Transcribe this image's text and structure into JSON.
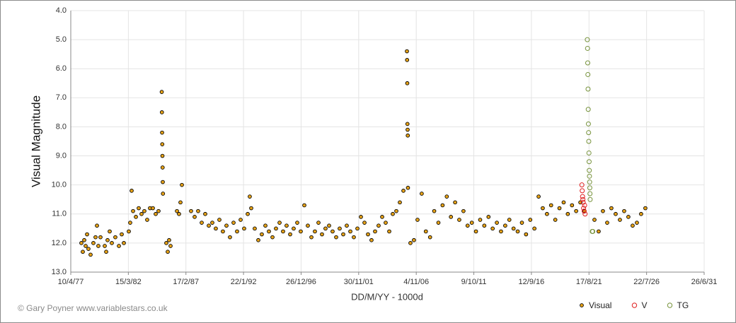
{
  "chart_data": {
    "type": "scatter",
    "x_label": "DD/M/YY - 1000d",
    "y_label": "Visual Magnitude",
    "credit": "© Gary Poyner www.variablestars.co.uk",
    "xlim": [
      2443244,
      2454244
    ],
    "xticks": [
      {
        "value": 2443244,
        "label": "10/4/77"
      },
      {
        "value": 2444244,
        "label": "15/3/82"
      },
      {
        "value": 2445244,
        "label": "17/2/87"
      },
      {
        "value": 2446244,
        "label": "22/1/92"
      },
      {
        "value": 2447244,
        "label": "26/12/96"
      },
      {
        "value": 2448244,
        "label": "30/11/01"
      },
      {
        "value": 2449244,
        "label": "4/11/06"
      },
      {
        "value": 2450244,
        "label": "9/10/11"
      },
      {
        "value": 2451244,
        "label": "12/9/16"
      },
      {
        "value": 2452244,
        "label": "17/8/21"
      },
      {
        "value": 2453244,
        "label": "22/7/26"
      },
      {
        "value": 2454244,
        "label": "26/6/31"
      }
    ],
    "ylim": [
      4,
      13
    ],
    "y_inverted": true,
    "yticks": [
      {
        "value": 4,
        "label": "4.0"
      },
      {
        "value": 5,
        "label": "5.0"
      },
      {
        "value": 6,
        "label": "6.0"
      },
      {
        "value": 7,
        "label": "7.0"
      },
      {
        "value": 8,
        "label": "8.0"
      },
      {
        "value": 9,
        "label": "9.0"
      },
      {
        "value": 10,
        "label": "10.0"
      },
      {
        "value": 11,
        "label": "11.0"
      },
      {
        "value": 12,
        "label": "12.0"
      },
      {
        "value": 13,
        "label": "13.0"
      }
    ],
    "grid": true,
    "legend": "bottom-right",
    "series": [
      {
        "name": "Visual",
        "color": "#e8a317",
        "edgecolor": "#000000",
        "filled": true,
        "x": [
          2443428,
          2443453,
          2443478,
          2443502,
          2443527,
          2443551,
          2443588,
          2443637,
          2443674,
          2443699,
          2443723,
          2443760,
          2443834,
          2443859,
          2443883,
          2443920,
          2443957,
          2444018,
          2444080,
          2444129,
          2444166,
          2444252,
          2444276,
          2444301,
          2444326,
          2444375,
          2444424,
          2444473,
          2444522,
          2444571,
          2444620,
          2444670,
          2444719,
          2444768,
          2444824,
          2444827,
          2444830,
          2444833,
          2444836,
          2444839,
          2444842,
          2444845,
          2444903,
          2444928,
          2444952,
          2444977,
          2445088,
          2445124,
          2445149,
          2445174,
          2445333,
          2445395,
          2445456,
          2445518,
          2445579,
          2445641,
          2445702,
          2445763,
          2445825,
          2445886,
          2445948,
          2446009,
          2446071,
          2446132,
          2446194,
          2446255,
          2446317,
          2446353,
          2446378,
          2446439,
          2446501,
          2446562,
          2446624,
          2446685,
          2446747,
          2446808,
          2446870,
          2446931,
          2446992,
          2447054,
          2447115,
          2447177,
          2447238,
          2447300,
          2447361,
          2447423,
          2447484,
          2447546,
          2447607,
          2447668,
          2447730,
          2447791,
          2447853,
          2447914,
          2447976,
          2448037,
          2448099,
          2448160,
          2448222,
          2448283,
          2448345,
          2448406,
          2448467,
          2448529,
          2448590,
          2448652,
          2448713,
          2448775,
          2448836,
          2448898,
          2448959,
          2449021,
          2449082,
          2449085,
          2449088,
          2449091,
          2449094,
          2449097,
          2449100,
          2449143,
          2449204,
          2449266,
          2449339,
          2449411,
          2449484,
          2449556,
          2449629,
          2449701,
          2449774,
          2449846,
          2449919,
          2449991,
          2450064,
          2450136,
          2450209,
          2450281,
          2450354,
          2450426,
          2450499,
          2450571,
          2450644,
          2450716,
          2450789,
          2450861,
          2450934,
          2451006,
          2451079,
          2451151,
          2451224,
          2451296,
          2451369,
          2451441,
          2451514,
          2451586,
          2451659,
          2451731,
          2451804,
          2451876,
          2451949,
          2452021,
          2452094,
          2452166,
          2452339,
          2452412,
          2452486,
          2452560,
          2452633,
          2452707,
          2452781,
          2452855,
          2452928,
          2453002,
          2453076,
          2453149,
          2453223
        ],
        "values": [
          12.0,
          12.3,
          11.9,
          12.1,
          11.7,
          12.2,
          12.4,
          12.0,
          11.8,
          11.4,
          12.1,
          11.8,
          12.1,
          12.3,
          11.9,
          11.6,
          12.0,
          11.8,
          12.1,
          11.7,
          12.0,
          11.6,
          11.3,
          10.2,
          10.9,
          11.1,
          10.8,
          11.0,
          10.9,
          11.2,
          10.8,
          10.8,
          11.0,
          10.9,
          6.8,
          7.5,
          8.2,
          8.6,
          9.0,
          9.4,
          9.9,
          10.3,
          12.0,
          12.3,
          11.9,
          12.1,
          10.9,
          11.0,
          10.6,
          10.0,
          10.9,
          11.1,
          10.9,
          11.3,
          11.0,
          11.4,
          11.3,
          11.5,
          11.2,
          11.6,
          11.4,
          11.8,
          11.3,
          11.6,
          11.2,
          11.5,
          11.0,
          10.4,
          10.8,
          11.5,
          11.9,
          11.7,
          11.4,
          11.6,
          11.8,
          11.5,
          11.3,
          11.6,
          11.4,
          11.7,
          11.5,
          11.3,
          11.6,
          10.7,
          11.4,
          11.8,
          11.6,
          11.3,
          11.7,
          11.5,
          11.4,
          11.6,
          11.8,
          11.5,
          11.7,
          11.4,
          11.6,
          11.8,
          11.5,
          11.1,
          11.3,
          11.7,
          11.9,
          11.6,
          11.4,
          11.1,
          11.3,
          11.6,
          11.0,
          10.9,
          10.6,
          10.2,
          5.4,
          5.7,
          6.5,
          7.9,
          8.1,
          8.3,
          10.1,
          12.0,
          11.9,
          11.2,
          10.3,
          11.6,
          11.8,
          10.9,
          11.3,
          10.7,
          10.4,
          11.1,
          10.6,
          11.2,
          10.9,
          11.4,
          11.3,
          11.6,
          11.2,
          11.4,
          11.1,
          11.5,
          11.3,
          11.6,
          11.4,
          11.2,
          11.5,
          11.6,
          11.3,
          11.7,
          11.2,
          11.5,
          10.4,
          10.8,
          11.0,
          10.7,
          11.2,
          10.8,
          10.6,
          11.0,
          10.7,
          10.9,
          10.6,
          10.9,
          11.2,
          11.6,
          10.9,
          11.3,
          10.8,
          11.0,
          11.2,
          10.9,
          11.1,
          11.4,
          11.3,
          11.0,
          10.8
        ]
      },
      {
        "name": "V",
        "color": "#e02020",
        "filled": false,
        "x": [
          2452120,
          2452126,
          2452132,
          2452138,
          2452144,
          2452150,
          2452160,
          2452168,
          2452176
        ],
        "values": [
          10.0,
          10.2,
          10.4,
          10.5,
          10.6,
          10.8,
          10.9,
          10.7,
          11.0
        ]
      },
      {
        "name": "TG",
        "color": "#77933c",
        "filled": false,
        "x": [
          2452215,
          2452219,
          2452222,
          2452225,
          2452228,
          2452231,
          2452234,
          2452237,
          2452240,
          2452243,
          2452246,
          2452249,
          2452252,
          2452255,
          2452258,
          2452261,
          2452264,
          2452300,
          2452310
        ],
        "values": [
          5.0,
          5.3,
          5.8,
          6.2,
          6.7,
          7.4,
          7.9,
          8.2,
          8.5,
          8.9,
          9.2,
          9.5,
          9.7,
          9.9,
          10.1,
          10.3,
          10.5,
          11.6,
          11.6
        ]
      }
    ]
  }
}
